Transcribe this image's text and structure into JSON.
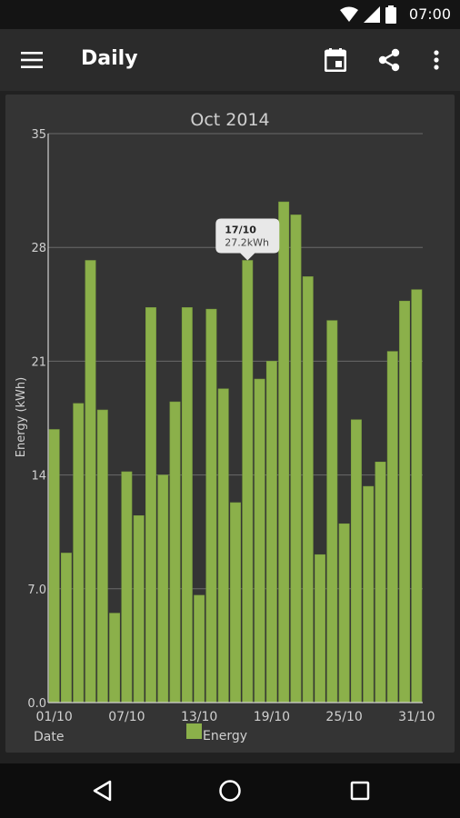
{
  "status_bar": {
    "time": "07:00",
    "icons": [
      "wifi-icon",
      "signal-icon",
      "battery-icon"
    ]
  },
  "app_bar": {
    "title": "Daily",
    "icons": [
      "menu-icon",
      "calendar-icon",
      "share-icon",
      "more-vert-icon"
    ]
  },
  "chart_data": {
    "type": "bar",
    "title": "Oct 2014",
    "xlabel": "Date",
    "ylabel": "Energy (kWh)",
    "ylim": [
      0,
      35
    ],
    "yticks": [
      "0.0",
      "7.0",
      "14",
      "21",
      "28",
      "35"
    ],
    "ytick_values": [
      0,
      7,
      14,
      21,
      28,
      35
    ],
    "xtick_labels": [
      "01/10",
      "07/10",
      "13/10",
      "19/10",
      "25/10",
      "31/10"
    ],
    "xtick_indices": [
      0,
      6,
      12,
      18,
      24,
      30
    ],
    "categories": [
      "01/10",
      "02/10",
      "03/10",
      "04/10",
      "05/10",
      "06/10",
      "07/10",
      "08/10",
      "09/10",
      "10/10",
      "11/10",
      "12/10",
      "13/10",
      "14/10",
      "15/10",
      "16/10",
      "17/10",
      "18/10",
      "19/10",
      "20/10",
      "21/10",
      "22/10",
      "23/10",
      "24/10",
      "25/10",
      "26/10",
      "27/10",
      "28/10",
      "29/10",
      "30/10",
      "31/10"
    ],
    "series": [
      {
        "name": "Energy",
        "color": "#8bb04a",
        "values": [
          16.8,
          9.2,
          18.4,
          27.2,
          18.0,
          5.5,
          14.2,
          11.5,
          24.3,
          14.0,
          18.5,
          24.3,
          6.6,
          24.2,
          19.3,
          12.3,
          27.2,
          19.9,
          21.0,
          30.8,
          30.0,
          26.2,
          9.1,
          23.5,
          11.0,
          17.4,
          13.3,
          14.8,
          21.6,
          24.7,
          25.4
        ]
      }
    ],
    "legend": {
      "position": "bottom-center",
      "label": "Energy"
    },
    "grid": true,
    "tooltip": {
      "index": 16,
      "date": "17/10",
      "value_text": "27.2kWh"
    }
  },
  "nav_bar": {
    "icons": [
      "back-icon",
      "home-icon",
      "recents-icon"
    ]
  }
}
